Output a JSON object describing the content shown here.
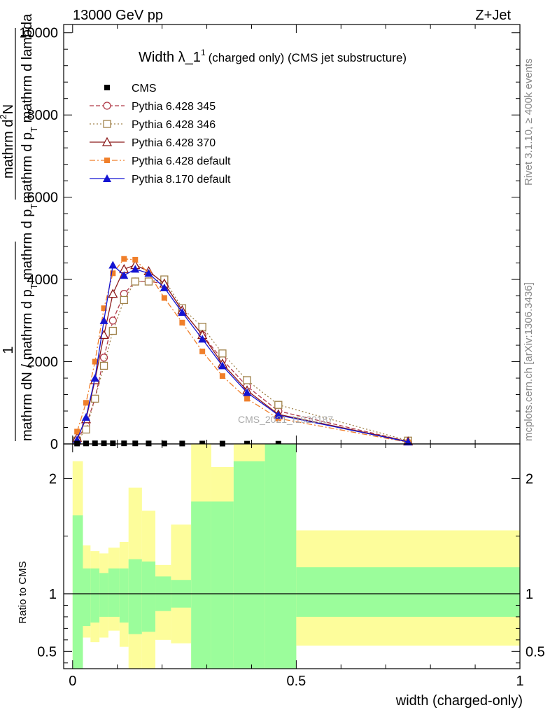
{
  "header": {
    "left": "13000 GeV pp",
    "right": "Z+Jet"
  },
  "side_text": {
    "rivet": "Rivet 3.1.10, ≥ 400k events",
    "mcplots": "mcplots.cern.ch [arXiv:1306.3436]"
  },
  "chart_data": [
    {
      "type": "line",
      "panel": "main",
      "title_main": "Width λ_1",
      "title_sup": "1",
      "title_rest": "(charged only) (CMS jet substructure)",
      "ylabel": "1 / mathrm dN / mathrm d p_T mathrm d p_T mathrm d lambda  mathrm d^2 N",
      "ylabel_parts": {
        "num_top": "mathrm d",
        "num_sup": "2",
        "num_end": "N",
        "den_top": "mathrm d p",
        "den_sub": "T",
        "den_end": " mathrm d lambda",
        "prefactor": "1",
        "pre_den": "mathrm dN / mathrm d p",
        "pre_den_sub": "T",
        "pre_den_end": " mathrm d p",
        "pre_den_sub2": "T"
      },
      "ylim": [
        0,
        10200
      ],
      "yticks": [
        0,
        2000,
        4000,
        6000,
        8000,
        10000
      ],
      "ytick_labels": [
        "0",
        "2000",
        "4000",
        "6000",
        "8000",
        "10000"
      ],
      "xlim": [
        -0.02,
        1.0
      ],
      "legend_position": "top-left",
      "watermark": "CMS_2021_I1920187",
      "cms": {
        "name": "CMS",
        "x": [
          0.01,
          0.03,
          0.05,
          0.07,
          0.09,
          0.115,
          0.14,
          0.17,
          0.205,
          0.245,
          0.29,
          0.335,
          0.39,
          0.46
        ],
        "y": [
          10,
          12,
          15,
          15,
          15,
          14,
          13,
          12,
          11,
          10,
          9,
          8,
          6,
          5
        ]
      },
      "series": [
        {
          "name": "Pythia 6.428 345",
          "color": "#b03a48",
          "style": "dashed",
          "marker": "open-circle",
          "x": [
            0.01,
            0.03,
            0.05,
            0.07,
            0.09,
            0.115,
            0.14,
            0.17,
            0.205,
            0.245,
            0.29,
            0.335,
            0.39,
            0.46,
            0.75
          ],
          "y": [
            100,
            450,
            1100,
            2100,
            3000,
            3650,
            3950,
            3950,
            3900,
            3250,
            2650,
            2050,
            1400,
            800,
            60
          ]
        },
        {
          "name": "Pythia 6.428 346",
          "color": "#a0824a",
          "style": "dotted",
          "marker": "open-square",
          "x": [
            0.01,
            0.03,
            0.05,
            0.07,
            0.09,
            0.115,
            0.14,
            0.17,
            0.205,
            0.245,
            0.29,
            0.335,
            0.39,
            0.46,
            0.75
          ],
          "y": [
            80,
            350,
            1100,
            1900,
            2750,
            3500,
            3950,
            3950,
            4000,
            3300,
            2850,
            2200,
            1550,
            950,
            80
          ]
        },
        {
          "name": "Pythia 6.428 370",
          "color": "#8b1a1a",
          "style": "solid",
          "marker": "open-triangle",
          "x": [
            0.01,
            0.03,
            0.05,
            0.07,
            0.09,
            0.115,
            0.14,
            0.17,
            0.205,
            0.245,
            0.29,
            0.335,
            0.39,
            0.46,
            0.75
          ],
          "y": [
            150,
            600,
            1550,
            2650,
            3650,
            4250,
            4350,
            4200,
            3900,
            3250,
            2650,
            1950,
            1300,
            720,
            60
          ]
        },
        {
          "name": "Pythia 6.428 default",
          "color": "#f07f2a",
          "style": "dashdot",
          "marker": "filled-square",
          "x": [
            0.01,
            0.03,
            0.05,
            0.07,
            0.09,
            0.115,
            0.14,
            0.17,
            0.205,
            0.245,
            0.29,
            0.335,
            0.39,
            0.46,
            0.75
          ],
          "y": [
            300,
            1000,
            2000,
            3300,
            4150,
            4500,
            4480,
            4150,
            3550,
            2950,
            2250,
            1650,
            1100,
            620,
            40
          ]
        },
        {
          "name": "Pythia 8.170 default",
          "color": "#1414d2",
          "style": "solid",
          "marker": "filled-triangle",
          "x": [
            0.01,
            0.03,
            0.05,
            0.07,
            0.09,
            0.115,
            0.14,
            0.17,
            0.205,
            0.245,
            0.29,
            0.335,
            0.39,
            0.46,
            0.75
          ],
          "y": [
            100,
            650,
            1600,
            3000,
            4350,
            4100,
            4250,
            4150,
            3800,
            3200,
            2550,
            1900,
            1250,
            700,
            50
          ]
        }
      ]
    },
    {
      "type": "area",
      "panel": "ratio",
      "ylabel": "Ratio to CMS",
      "ylim": [
        0.35,
        2.3
      ],
      "yticks": [
        0.5,
        1,
        2
      ],
      "ytick_labels": [
        "0.5",
        "1",
        "2"
      ],
      "xlim": [
        -0.02,
        1.0
      ],
      "xticks": [
        0,
        0.5,
        1
      ],
      "xtick_labels": [
        "0",
        "0.5",
        "1"
      ],
      "xlabel": "width (charged-only)",
      "bins": [
        {
          "x0": 0.0,
          "x1": 0.023,
          "y1_lo": 0.35,
          "y1_hi": 1.68,
          "y2_lo": 0.35,
          "y2_hi": 2.15
        },
        {
          "x0": 0.023,
          "x1": 0.04,
          "y1_lo": 0.72,
          "y1_hi": 1.22,
          "y2_lo": 0.62,
          "y2_hi": 1.42
        },
        {
          "x0": 0.04,
          "x1": 0.06,
          "y1_lo": 0.75,
          "y1_hi": 1.22,
          "y2_lo": 0.58,
          "y2_hi": 1.37
        },
        {
          "x0": 0.06,
          "x1": 0.08,
          "y1_lo": 0.8,
          "y1_hi": 1.18,
          "y2_lo": 0.62,
          "y2_hi": 1.35
        },
        {
          "x0": 0.08,
          "x1": 0.105,
          "y1_lo": 0.8,
          "y1_hi": 1.22,
          "y2_lo": 0.68,
          "y2_hi": 1.4
        },
        {
          "x0": 0.105,
          "x1": 0.125,
          "y1_lo": 0.75,
          "y1_hi": 1.22,
          "y2_lo": 0.54,
          "y2_hi": 1.45
        },
        {
          "x0": 0.125,
          "x1": 0.155,
          "y1_lo": 0.65,
          "y1_hi": 1.3,
          "y2_lo": 0.35,
          "y2_hi": 1.92
        },
        {
          "x0": 0.155,
          "x1": 0.185,
          "y1_lo": 0.67,
          "y1_hi": 1.28,
          "y2_lo": 0.35,
          "y2_hi": 1.72
        },
        {
          "x0": 0.185,
          "x1": 0.22,
          "y1_lo": 0.85,
          "y1_hi": 1.15,
          "y2_lo": 0.6,
          "y2_hi": 1.25
        },
        {
          "x0": 0.22,
          "x1": 0.265,
          "y1_lo": 0.88,
          "y1_hi": 1.12,
          "y2_lo": 0.57,
          "y2_hi": 1.6
        },
        {
          "x0": 0.265,
          "x1": 0.31,
          "y1_lo": 0.35,
          "y1_hi": 1.8,
          "y2_lo": 0.35,
          "y2_hi": 2.35
        },
        {
          "x0": 0.31,
          "x1": 0.36,
          "y1_lo": 0.35,
          "y1_hi": 1.8,
          "y2_lo": 0.35,
          "y2_hi": 2.1
        },
        {
          "x0": 0.36,
          "x1": 0.43,
          "y1_lo": 0.35,
          "y1_hi": 2.15,
          "y2_lo": 0.35,
          "y2_hi": 2.35
        },
        {
          "x0": 0.43,
          "x1": 0.5,
          "y1_lo": 0.35,
          "y1_hi": 2.35,
          "y2_lo": 0.35,
          "y2_hi": 2.35
        },
        {
          "x0": 0.5,
          "x1": 1.0,
          "y1_lo": 0.8,
          "y1_hi": 1.23,
          "y2_lo": 0.55,
          "y2_hi": 1.55
        }
      ],
      "band_colors": {
        "inner": "#9bfd9b",
        "outer": "#fdfd9b"
      }
    }
  ]
}
